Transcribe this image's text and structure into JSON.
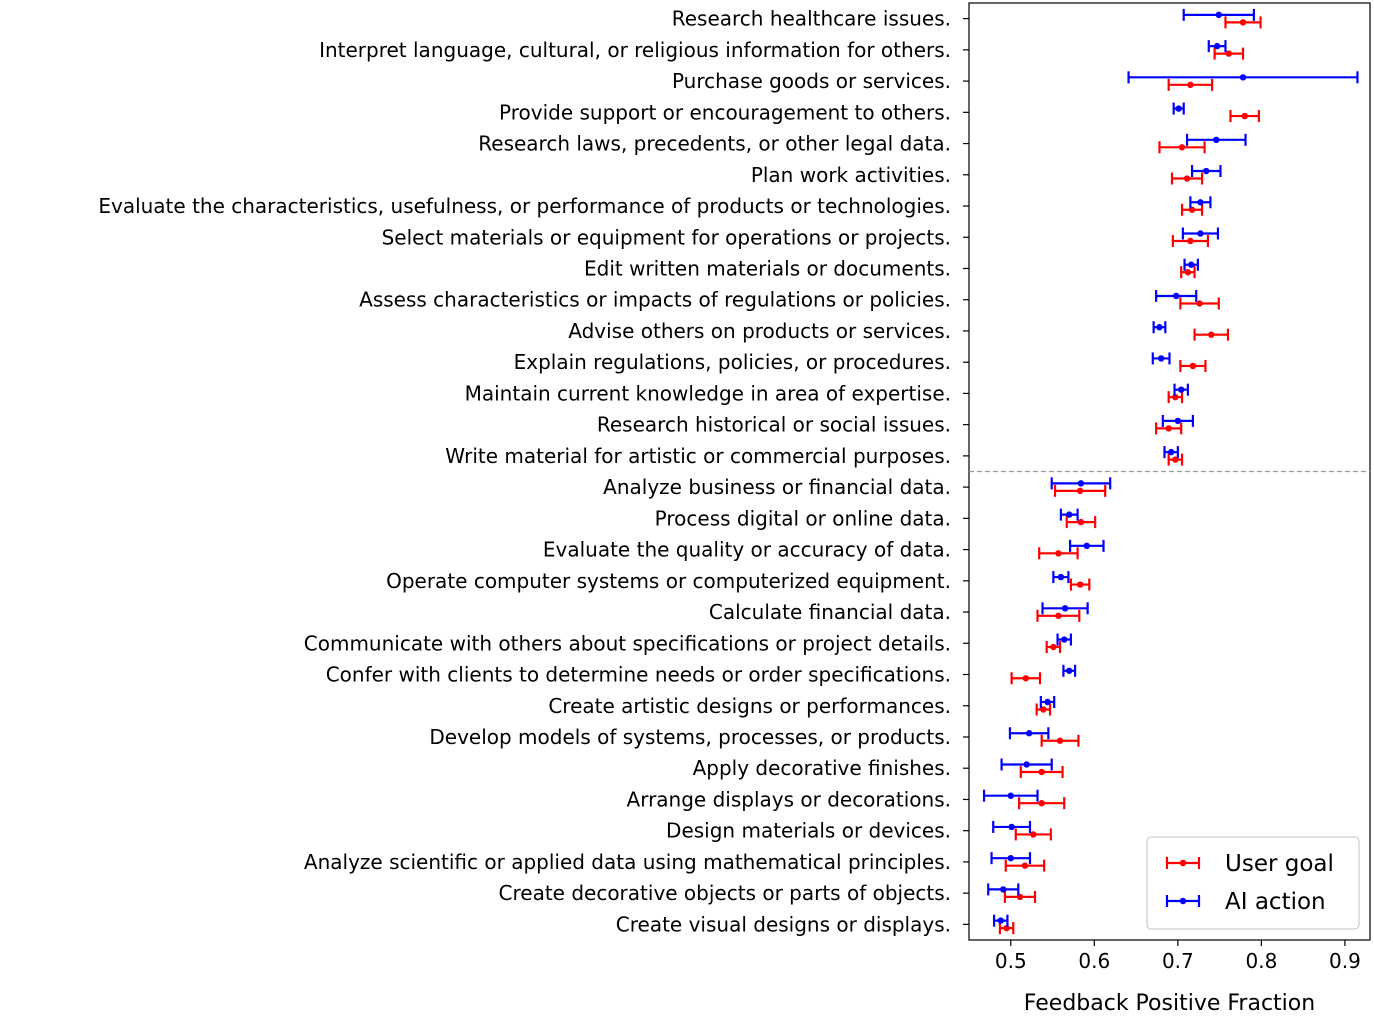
{
  "chart_data": {
    "type": "errorbar",
    "orientation": "horizontal",
    "xlabel": "Feedback Positive Fraction",
    "xlim": [
      0.45,
      0.93
    ],
    "xticks": [
      0.5,
      0.6,
      0.7,
      0.8,
      0.9
    ],
    "xtick_labels": [
      "0.5",
      "0.6",
      "0.7",
      "0.8",
      "0.9"
    ],
    "divider_after_index": 14,
    "legend_position": "bottom-right",
    "categories": [
      "Research healthcare issues.",
      "Interpret language, cultural, or religious information for others.",
      "Purchase goods or services.",
      "Provide support or encouragement to others.",
      "Research laws, precedents, or other legal data.",
      "Plan work activities.",
      "Evaluate the characteristics, usefulness, or performance of products or technologies.",
      "Select materials or equipment for operations or projects.",
      "Edit written materials or documents.",
      "Assess characteristics or impacts of regulations or policies.",
      "Advise others on products or services.",
      "Explain regulations, policies, or procedures.",
      "Maintain current knowledge in area of expertise.",
      "Research historical or social issues.",
      "Write material for artistic or commercial purposes.",
      "Analyze business or financial data.",
      "Process digital or online data.",
      "Evaluate the quality or accuracy of data.",
      "Operate computer systems or computerized equipment.",
      "Calculate financial data.",
      "Communicate with others about specifications or project details.",
      "Confer with clients to determine needs or order specifications.",
      "Create artistic designs or performances.",
      "Develop models of systems, processes, or products.",
      "Apply decorative finishes.",
      "Arrange displays or decorations.",
      "Design materials or devices.",
      "Analyze scientific or applied data using mathematical principles.",
      "Create decorative objects or parts of objects.",
      "Create visual designs or displays."
    ],
    "series": [
      {
        "name": "User goal",
        "color": "#ff0000",
        "offset": 0.12,
        "values": [
          0.778,
          0.761,
          0.715,
          0.78,
          0.705,
          0.711,
          0.717,
          0.715,
          0.712,
          0.726,
          0.74,
          0.718,
          0.697,
          0.689,
          0.697,
          0.583,
          0.584,
          0.557,
          0.583,
          0.557,
          0.551,
          0.518,
          0.539,
          0.559,
          0.537,
          0.537,
          0.527,
          0.517,
          0.511,
          0.495
        ],
        "errors": [
          0.021,
          0.017,
          0.026,
          0.017,
          0.027,
          0.018,
          0.012,
          0.021,
          0.008,
          0.023,
          0.02,
          0.015,
          0.008,
          0.015,
          0.008,
          0.03,
          0.017,
          0.023,
          0.011,
          0.025,
          0.008,
          0.017,
          0.008,
          0.022,
          0.025,
          0.027,
          0.021,
          0.023,
          0.018,
          0.008
        ]
      },
      {
        "name": "AI action",
        "color": "#0000ff",
        "offset": -0.12,
        "values": [
          0.749,
          0.747,
          0.778,
          0.701,
          0.746,
          0.734,
          0.727,
          0.727,
          0.716,
          0.698,
          0.678,
          0.68,
          0.704,
          0.7,
          0.692,
          0.584,
          0.57,
          0.591,
          0.56,
          0.565,
          0.564,
          0.57,
          0.544,
          0.522,
          0.519,
          0.5,
          0.501,
          0.5,
          0.491,
          0.488
        ],
        "errors": [
          0.042,
          0.01,
          0.137,
          0.006,
          0.035,
          0.017,
          0.012,
          0.021,
          0.008,
          0.024,
          0.007,
          0.01,
          0.008,
          0.018,
          0.008,
          0.035,
          0.01,
          0.02,
          0.009,
          0.027,
          0.008,
          0.007,
          0.008,
          0.023,
          0.03,
          0.032,
          0.022,
          0.023,
          0.018,
          0.008
        ]
      }
    ]
  }
}
